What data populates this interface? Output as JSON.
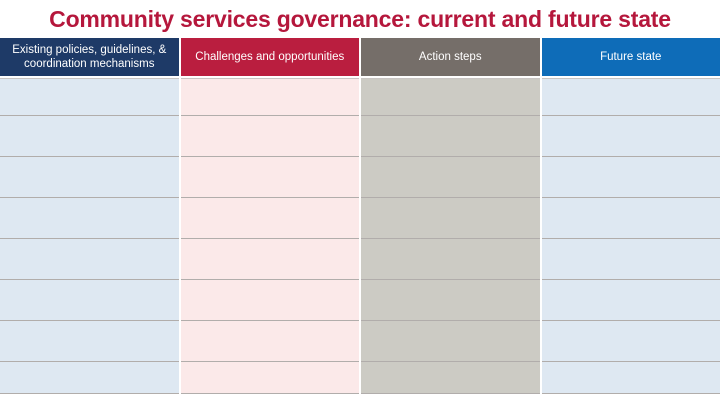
{
  "title": "Community services governance: current and future state",
  "colors": {
    "title_text": "#B5173C",
    "grid_line": "#B1ADAB",
    "background": "#FFFFFF",
    "header_text": "#FFFFFF"
  },
  "table": {
    "columns": [
      {
        "id": "existing-policies",
        "label": "Existing policies, guidelines, & coordination mechanisms",
        "header_color": "#1E3A67",
        "body_color": "#DEE8F2"
      },
      {
        "id": "challenges-opportunities",
        "label": "Challenges and opportunities",
        "header_color": "#BA1E3F",
        "body_color": "#FBE9E9"
      },
      {
        "id": "action-steps",
        "label": "Action steps",
        "header_color": "#756E69",
        "body_color": "#CCCBC4"
      },
      {
        "id": "future-state",
        "label": "Future state",
        "header_color": "#0E6CB8",
        "body_color": "#DEE8F2"
      }
    ],
    "row_count": 8,
    "rows": [
      [
        "",
        "",
        "",
        ""
      ],
      [
        "",
        "",
        "",
        ""
      ],
      [
        "",
        "",
        "",
        ""
      ],
      [
        "",
        "",
        "",
        ""
      ],
      [
        "",
        "",
        "",
        ""
      ],
      [
        "",
        "",
        "",
        ""
      ],
      [
        "",
        "",
        "",
        ""
      ],
      [
        "",
        "",
        "",
        ""
      ]
    ]
  }
}
